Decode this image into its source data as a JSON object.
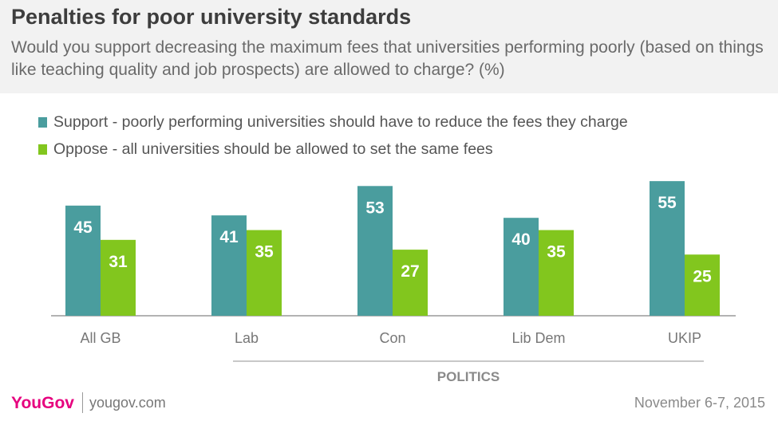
{
  "title": "Penalties for poor university standards",
  "subtitle": "Would you support decreasing the maximum fees that universities performing poorly (based on things like teaching quality and job prospects) are allowed to charge? (%)",
  "colors": {
    "support": "#4a9d9e",
    "oppose": "#82c61e"
  },
  "chart_data": {
    "type": "bar",
    "categories": [
      "All GB",
      "Lab",
      "Con",
      "Lib Dem",
      "UKIP"
    ],
    "series": [
      {
        "name": "Support - poorly performing universities should have to reduce the fees they charge",
        "values": [
          45,
          41,
          53,
          40,
          55
        ]
      },
      {
        "name": "Oppose - all universities should be allowed to set the same fees",
        "values": [
          31,
          35,
          27,
          35,
          25
        ]
      }
    ],
    "ylim": [
      0,
      60
    ],
    "grid": false,
    "legend": "top-left",
    "group_label": "POLITICS"
  },
  "footer": {
    "logo": "YouGov",
    "site": "yougov.com",
    "date": "November 6-7, 2015"
  }
}
